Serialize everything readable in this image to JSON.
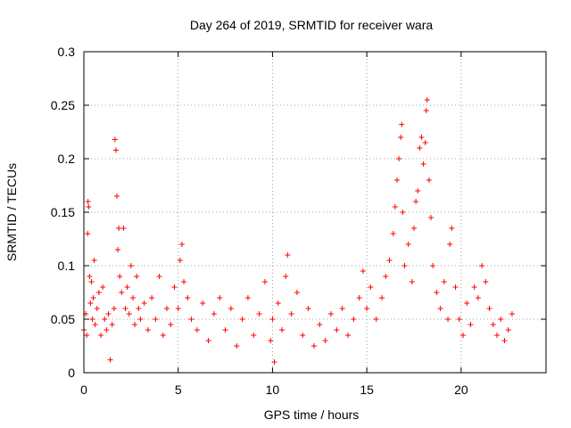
{
  "chart_data": {
    "type": "scatter",
    "title": "Day 264 of 2019, SRMTID for receiver wara",
    "xlabel": "GPS time / hours",
    "ylabel": "SRMTID / TECUs",
    "xlim": [
      0,
      24.5
    ],
    "ylim": [
      0,
      0.3
    ],
    "x_ticks": [
      0,
      5,
      10,
      15,
      20
    ],
    "x_tick_labels": [
      "0",
      "5",
      "10",
      "15",
      "20"
    ],
    "y_ticks": [
      0,
      0.05,
      0.1,
      0.15,
      0.2,
      0.25,
      0.3
    ],
    "y_tick_labels": [
      "0",
      "0.05",
      "0.1",
      "0.15",
      "0.2",
      "0.25",
      "0.3"
    ],
    "grid": true,
    "marker": "+",
    "color": "#ff0000",
    "series": [
      {
        "name": "SRMTID",
        "points": [
          [
            0.0,
            0.04
          ],
          [
            0.1,
            0.055
          ],
          [
            0.15,
            0.035
          ],
          [
            0.2,
            0.13
          ],
          [
            0.22,
            0.16
          ],
          [
            0.25,
            0.155
          ],
          [
            0.3,
            0.09
          ],
          [
            0.35,
            0.065
          ],
          [
            0.4,
            0.085
          ],
          [
            0.45,
            0.05
          ],
          [
            0.5,
            0.07
          ],
          [
            0.55,
            0.105
          ],
          [
            0.6,
            0.045
          ],
          [
            0.7,
            0.06
          ],
          [
            0.8,
            0.075
          ],
          [
            0.9,
            0.035
          ],
          [
            1.0,
            0.08
          ],
          [
            1.1,
            0.05
          ],
          [
            1.2,
            0.04
          ],
          [
            1.3,
            0.055
          ],
          [
            1.4,
            0.012
          ],
          [
            1.5,
            0.045
          ],
          [
            1.6,
            0.06
          ],
          [
            1.65,
            0.218
          ],
          [
            1.7,
            0.208
          ],
          [
            1.75,
            0.165
          ],
          [
            1.8,
            0.115
          ],
          [
            1.85,
            0.135
          ],
          [
            1.9,
            0.09
          ],
          [
            2.0,
            0.075
          ],
          [
            2.1,
            0.135
          ],
          [
            2.2,
            0.06
          ],
          [
            2.3,
            0.08
          ],
          [
            2.4,
            0.055
          ],
          [
            2.5,
            0.1
          ],
          [
            2.6,
            0.07
          ],
          [
            2.7,
            0.045
          ],
          [
            2.8,
            0.09
          ],
          [
            2.9,
            0.06
          ],
          [
            3.0,
            0.05
          ],
          [
            3.2,
            0.065
          ],
          [
            3.4,
            0.04
          ],
          [
            3.6,
            0.07
          ],
          [
            3.8,
            0.05
          ],
          [
            4.0,
            0.09
          ],
          [
            4.2,
            0.035
          ],
          [
            4.4,
            0.06
          ],
          [
            4.6,
            0.045
          ],
          [
            4.8,
            0.08
          ],
          [
            5.0,
            0.06
          ],
          [
            5.1,
            0.105
          ],
          [
            5.2,
            0.12
          ],
          [
            5.3,
            0.085
          ],
          [
            5.5,
            0.07
          ],
          [
            5.7,
            0.05
          ],
          [
            6.0,
            0.04
          ],
          [
            6.3,
            0.065
          ],
          [
            6.6,
            0.03
          ],
          [
            6.9,
            0.055
          ],
          [
            7.2,
            0.07
          ],
          [
            7.5,
            0.04
          ],
          [
            7.8,
            0.06
          ],
          [
            8.1,
            0.025
          ],
          [
            8.4,
            0.05
          ],
          [
            8.7,
            0.07
          ],
          [
            9.0,
            0.035
          ],
          [
            9.3,
            0.055
          ],
          [
            9.6,
            0.085
          ],
          [
            9.9,
            0.03
          ],
          [
            10.0,
            0.05
          ],
          [
            10.1,
            0.01
          ],
          [
            10.3,
            0.065
          ],
          [
            10.5,
            0.04
          ],
          [
            10.7,
            0.09
          ],
          [
            10.8,
            0.11
          ],
          [
            11.0,
            0.055
          ],
          [
            11.3,
            0.075
          ],
          [
            11.6,
            0.035
          ],
          [
            11.9,
            0.06
          ],
          [
            12.2,
            0.025
          ],
          [
            12.5,
            0.045
          ],
          [
            12.8,
            0.03
          ],
          [
            13.1,
            0.055
          ],
          [
            13.4,
            0.04
          ],
          [
            13.7,
            0.06
          ],
          [
            14.0,
            0.035
          ],
          [
            14.3,
            0.05
          ],
          [
            14.6,
            0.07
          ],
          [
            14.8,
            0.095
          ],
          [
            15.0,
            0.06
          ],
          [
            15.2,
            0.08
          ],
          [
            15.5,
            0.05
          ],
          [
            15.8,
            0.07
          ],
          [
            16.0,
            0.09
          ],
          [
            16.2,
            0.105
          ],
          [
            16.4,
            0.13
          ],
          [
            16.5,
            0.155
          ],
          [
            16.6,
            0.18
          ],
          [
            16.7,
            0.2
          ],
          [
            16.8,
            0.22
          ],
          [
            16.85,
            0.232
          ],
          [
            16.9,
            0.15
          ],
          [
            17.0,
            0.1
          ],
          [
            17.2,
            0.12
          ],
          [
            17.4,
            0.085
          ],
          [
            17.5,
            0.135
          ],
          [
            17.6,
            0.16
          ],
          [
            17.7,
            0.17
          ],
          [
            17.8,
            0.21
          ],
          [
            17.9,
            0.22
          ],
          [
            18.0,
            0.195
          ],
          [
            18.1,
            0.215
          ],
          [
            18.15,
            0.245
          ],
          [
            18.2,
            0.255
          ],
          [
            18.3,
            0.18
          ],
          [
            18.4,
            0.145
          ],
          [
            18.5,
            0.1
          ],
          [
            18.7,
            0.075
          ],
          [
            18.9,
            0.06
          ],
          [
            19.1,
            0.085
          ],
          [
            19.3,
            0.05
          ],
          [
            19.4,
            0.12
          ],
          [
            19.5,
            0.135
          ],
          [
            19.7,
            0.08
          ],
          [
            19.9,
            0.05
          ],
          [
            20.1,
            0.035
          ],
          [
            20.3,
            0.065
          ],
          [
            20.5,
            0.045
          ],
          [
            20.7,
            0.08
          ],
          [
            20.9,
            0.07
          ],
          [
            21.1,
            0.1
          ],
          [
            21.3,
            0.085
          ],
          [
            21.5,
            0.06
          ],
          [
            21.7,
            0.045
          ],
          [
            21.9,
            0.035
          ],
          [
            22.1,
            0.05
          ],
          [
            22.3,
            0.03
          ],
          [
            22.5,
            0.04
          ],
          [
            22.7,
            0.055
          ]
        ]
      }
    ]
  }
}
